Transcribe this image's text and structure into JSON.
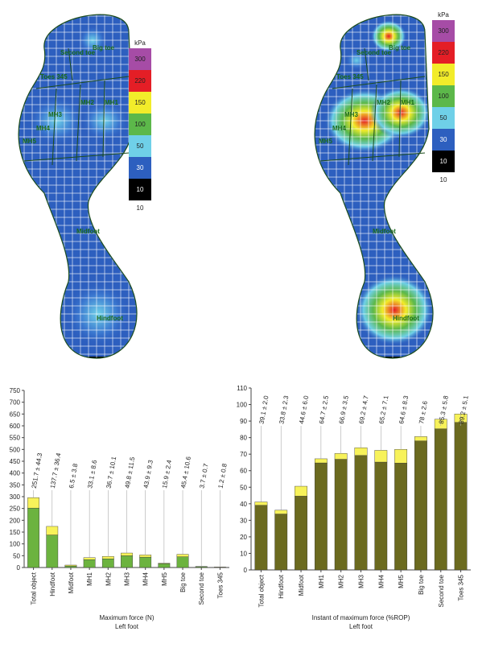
{
  "maps": [
    {
      "scale": {
        "title": "kPa",
        "ticks": [
          300,
          220,
          150,
          100,
          50,
          30,
          10
        ],
        "bottom": 10,
        "colors": [
          "#a64ca6",
          "#e41e26",
          "#f2ec2a",
          "#5cb84a",
          "#6fd0e8",
          "#2d5fbf",
          "#000000"
        ]
      },
      "regions": [
        "Second toe",
        "Big toe",
        "Toes 345",
        "MH1",
        "MH2",
        "MH3",
        "MH4",
        "MH5",
        "Midfoot",
        "Hindfoot"
      ]
    },
    {
      "scale": {
        "title": "kPa",
        "ticks": [
          300,
          220,
          150,
          100,
          50,
          30,
          10
        ],
        "bottom": 10,
        "colors": [
          "#a64ca6",
          "#e41e26",
          "#f2ec2a",
          "#5cb84a",
          "#6fd0e8",
          "#2d5fbf",
          "#000000"
        ]
      },
      "regions": [
        "Second toe",
        "Big toe",
        "Toes 345",
        "MH1",
        "MH2",
        "MH3",
        "MH4",
        "MH5",
        "Midfoot",
        "Hindfoot"
      ]
    }
  ],
  "chart_data": [
    {
      "type": "bar",
      "x_label": "Maximum force (N)",
      "subtitle": "Left foot",
      "categories": [
        "Total object",
        "Hindfoot",
        "Midfoot",
        "MH1",
        "MH2",
        "MH3",
        "MH4",
        "MH5",
        "Big toe",
        "Second toe",
        "Toes 345"
      ],
      "values": [
        251.7,
        137.7,
        6.5,
        33.1,
        36.7,
        49.8,
        43.9,
        15.9,
        45.4,
        3.7,
        1.2
      ],
      "errors": [
        44.3,
        36.4,
        3.8,
        8.6,
        10.1,
        11.5,
        9.3,
        2.4,
        10.6,
        0.7,
        0.8
      ],
      "value_labels": [
        "251.7 ± 44.3",
        "137.7 ± 36.4",
        "6.5 ± 3.8",
        "33.1 ± 8.6",
        "36.7 ± 10.1",
        "49.8 ± 11.5",
        "43.9 ± 9.3",
        "15.9 ± 2.4",
        "45.4 ± 10.6",
        "3.7 ± 0.7",
        "1.2 ± 0.8"
      ],
      "color": "#6cb33f",
      "error_color": "#f7f25a",
      "ylim": [
        0,
        750
      ],
      "yticks": [
        0,
        50,
        100,
        150,
        200,
        250,
        300,
        350,
        400,
        450,
        500,
        550,
        600,
        650,
        700,
        750
      ]
    },
    {
      "type": "bar",
      "x_label": "Instant of maximum force (%ROP)",
      "subtitle": "Left foot",
      "categories": [
        "Total object",
        "Hindfoot",
        "Midfoot",
        "MH1",
        "MH2",
        "MH3",
        "MH4",
        "MH5",
        "Big toe",
        "Second toe",
        "Toes 345"
      ],
      "values": [
        39.1,
        33.8,
        44.6,
        64.7,
        66.9,
        69.2,
        65.2,
        64.6,
        78,
        85.3,
        89.2
      ],
      "errors": [
        2.0,
        2.3,
        6.0,
        2.5,
        3.5,
        4.7,
        7.1,
        8.3,
        2.6,
        5.8,
        5.1
      ],
      "value_labels": [
        "39.1 ± 2.0",
        "33.8 ± 2.3",
        "44.6 ± 6.0",
        "64.7 ± 2.5",
        "66.9 ± 3.5",
        "69.2 ± 4.7",
        "65.2 ± 7.1",
        "64.6 ± 8.3",
        "78 ± 2.6",
        "85.3 ± 5.8",
        "89.2 ± 5.1"
      ],
      "color": "#6b6a1f",
      "error_color": "#f7f25a",
      "ylim": [
        0,
        110
      ],
      "yticks": [
        0,
        10,
        20,
        30,
        40,
        50,
        60,
        70,
        80,
        90,
        100,
        110
      ]
    }
  ]
}
